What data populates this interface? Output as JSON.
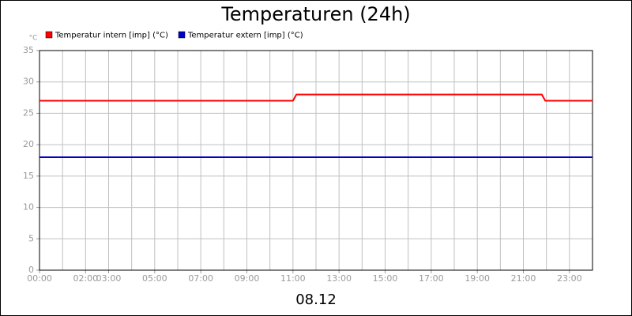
{
  "chart_data": {
    "type": "line",
    "title": "Temperaturen (24h)",
    "subtitle": "08.12",
    "y_label": "°C",
    "xlim": [
      0,
      24
    ],
    "ylim": [
      0,
      35
    ],
    "grid": true,
    "yticks": [
      0,
      5,
      10,
      15,
      20,
      25,
      30,
      35
    ],
    "xticks": [
      {
        "value": 0,
        "label": "00:00"
      },
      {
        "value": 2,
        "label": "02:00"
      },
      {
        "value": 3,
        "label": "03:00"
      },
      {
        "value": 5,
        "label": "05:00"
      },
      {
        "value": 7,
        "label": "07:00"
      },
      {
        "value": 9,
        "label": "09:00"
      },
      {
        "value": 11,
        "label": "11:00"
      },
      {
        "value": 13,
        "label": "13:00"
      },
      {
        "value": 15,
        "label": "15:00"
      },
      {
        "value": 17,
        "label": "17:00"
      },
      {
        "value": 19,
        "label": "19:00"
      },
      {
        "value": 21,
        "label": "21:00"
      },
      {
        "value": 23,
        "label": "23:00"
      }
    ],
    "series": [
      {
        "name": "Temperatur intern [imp] (°C)",
        "color": "#ff0000",
        "x": [
          0,
          11,
          11.15,
          21.8,
          21.95,
          24
        ],
        "values": [
          27,
          27,
          28,
          28,
          27,
          27
        ]
      },
      {
        "name": "Temperatur extern [imp] (°C)",
        "color": "#0000cc",
        "x": [
          0,
          24
        ],
        "values": [
          18,
          18
        ]
      }
    ]
  }
}
